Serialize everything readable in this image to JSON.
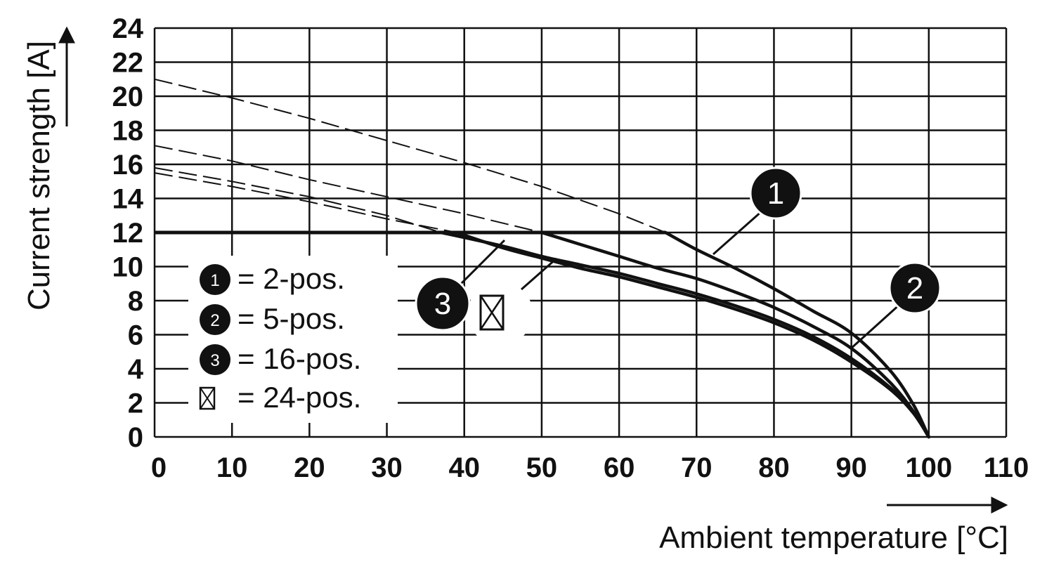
{
  "chart_data": {
    "type": "line",
    "xlabel": "Ambient temperature [°C]",
    "ylabel": "Current strength [A]",
    "xlim": [
      0,
      110
    ],
    "ylim": [
      0,
      24
    ],
    "x_ticks": [
      0,
      10,
      20,
      30,
      40,
      50,
      60,
      70,
      80,
      90,
      100,
      110
    ],
    "y_ticks": [
      0,
      2,
      4,
      6,
      8,
      10,
      12,
      14,
      16,
      18,
      20,
      22,
      24
    ],
    "grid": true,
    "legend_position": "bottom-left",
    "legend": [
      {
        "marker": "1",
        "label": "= 2-pos."
      },
      {
        "marker": "2",
        "label": "= 5-pos."
      },
      {
        "marker": "3",
        "label": "= 16-pos."
      },
      {
        "marker": "box-x",
        "label": "= 24-pos."
      }
    ],
    "plateau": {
      "value": 12,
      "x": [
        0,
        66
      ]
    },
    "series": [
      {
        "marker": "1",
        "solid": [
          [
            66,
            12
          ],
          [
            70,
            11
          ],
          [
            75,
            9.9
          ],
          [
            80,
            8.7
          ],
          [
            85,
            7.4
          ],
          [
            90,
            6.1
          ],
          [
            95,
            3.9
          ],
          [
            98,
            1.9
          ],
          [
            100,
            0
          ]
        ],
        "dashed": [
          [
            0,
            21
          ],
          [
            10,
            19.9
          ],
          [
            20,
            18.7
          ],
          [
            30,
            17.4
          ],
          [
            40,
            16.1
          ],
          [
            50,
            14.7
          ],
          [
            60,
            13.1
          ],
          [
            66,
            12
          ]
        ]
      },
      {
        "marker": "2",
        "solid": [
          [
            50,
            12
          ],
          [
            55,
            11.3
          ],
          [
            60,
            10.6
          ],
          [
            65,
            9.9
          ],
          [
            70,
            9.3
          ],
          [
            75,
            8.5
          ],
          [
            80,
            7.6
          ],
          [
            85,
            6.5
          ],
          [
            90,
            5.2
          ],
          [
            95,
            3.2
          ],
          [
            98,
            1.5
          ],
          [
            100,
            0
          ]
        ],
        "dashed": [
          [
            0,
            17.1
          ],
          [
            10,
            16.2
          ],
          [
            20,
            15.1
          ],
          [
            30,
            14.1
          ],
          [
            40,
            13.1
          ],
          [
            50,
            12
          ]
        ]
      },
      {
        "marker": "3",
        "solid": [
          [
            37,
            12
          ],
          [
            45,
            11.2
          ],
          [
            50,
            10.6
          ],
          [
            55,
            10.1
          ],
          [
            60,
            9.6
          ],
          [
            65,
            9.0
          ],
          [
            70,
            8.4
          ],
          [
            75,
            7.7
          ],
          [
            80,
            6.9
          ],
          [
            85,
            5.9
          ],
          [
            90,
            4.6
          ],
          [
            95,
            2.9
          ],
          [
            98,
            1.5
          ],
          [
            100,
            0
          ]
        ],
        "dashed": [
          [
            0,
            15.8
          ],
          [
            10,
            15
          ],
          [
            20,
            14.1
          ],
          [
            30,
            13
          ],
          [
            37,
            12
          ]
        ]
      },
      {
        "marker": "box-x",
        "solid": [
          [
            39,
            12
          ],
          [
            45,
            11.1
          ],
          [
            50,
            10.5
          ],
          [
            55,
            9.9
          ],
          [
            60,
            9.4
          ],
          [
            65,
            8.8
          ],
          [
            70,
            8.2
          ],
          [
            75,
            7.5
          ],
          [
            80,
            6.7
          ],
          [
            85,
            5.7
          ],
          [
            90,
            4.4
          ],
          [
            95,
            2.8
          ],
          [
            98,
            1.4
          ],
          [
            100,
            0
          ]
        ],
        "dashed": [
          [
            0,
            15.5
          ],
          [
            10,
            14.7
          ],
          [
            20,
            13.8
          ],
          [
            30,
            12.8
          ],
          [
            39,
            12
          ]
        ]
      }
    ],
    "curve_badges": [
      {
        "marker": "1",
        "label": "1"
      },
      {
        "marker": "2",
        "label": "2"
      },
      {
        "marker": "3",
        "label": "3"
      }
    ]
  }
}
